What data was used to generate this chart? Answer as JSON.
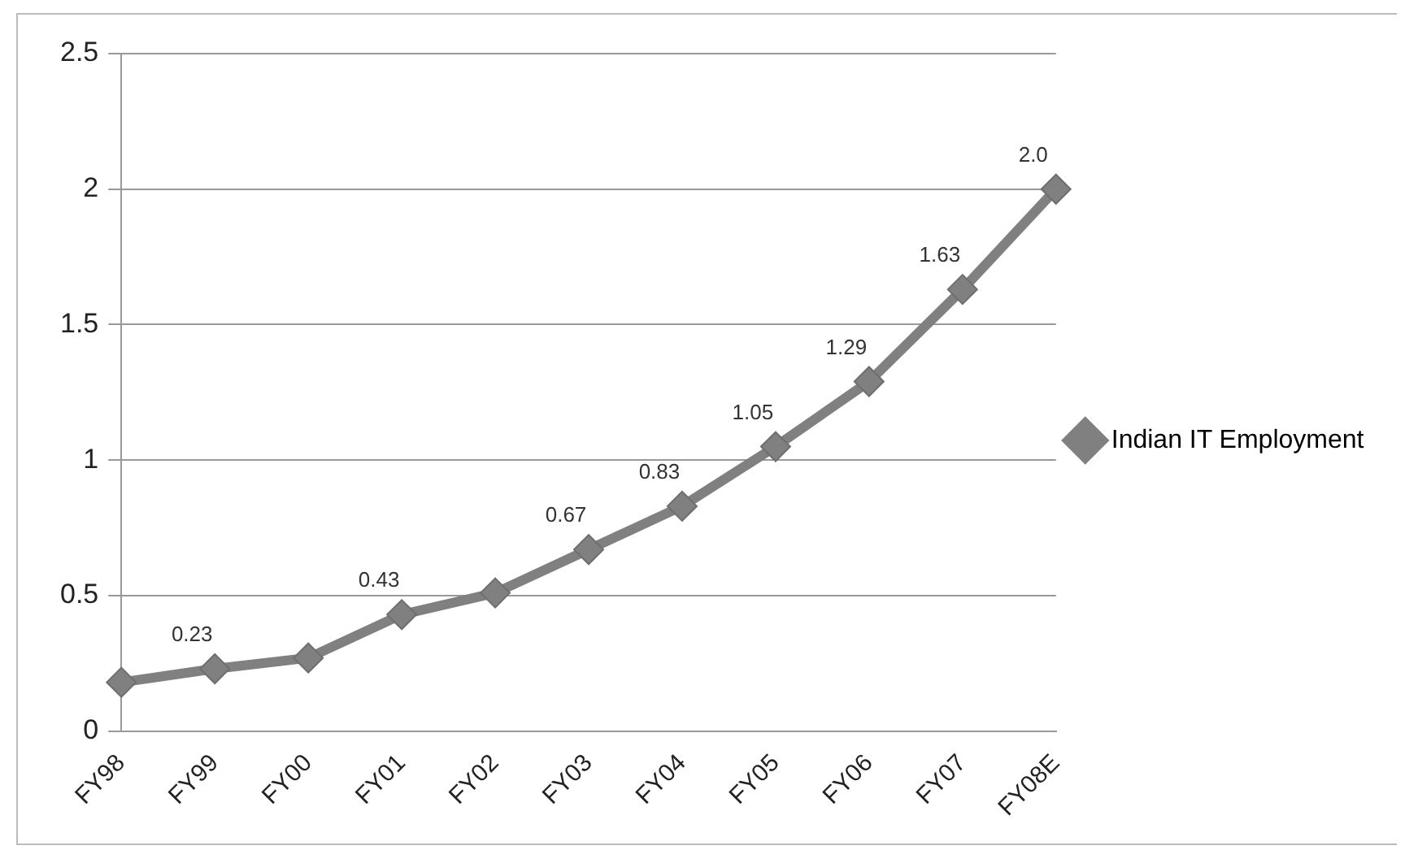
{
  "chart_data": {
    "type": "line",
    "categories": [
      "FY98",
      "FY99",
      "FY00",
      "FY01",
      "FY02",
      "FY03",
      "FY04",
      "FY05",
      "FY06",
      "FY07",
      "FY08E"
    ],
    "series": [
      {
        "name": "Indian IT Employment",
        "color": "#808080",
        "values": [
          0.18,
          0.23,
          0.27,
          0.43,
          0.51,
          0.67,
          0.83,
          1.05,
          1.29,
          1.63,
          2.0
        ],
        "value_labels": [
          null,
          "0.23",
          null,
          "0.43",
          null,
          "0.67",
          "0.83",
          "1.05",
          "1.29",
          "1.63",
          "2.0"
        ]
      }
    ],
    "ylim": [
      0,
      2.5
    ],
    "yticks": [
      0,
      0.5,
      1,
      1.5,
      2,
      2.5
    ],
    "grid": "y",
    "legend": "right",
    "marker": "diamond",
    "line_style": "solid"
  }
}
